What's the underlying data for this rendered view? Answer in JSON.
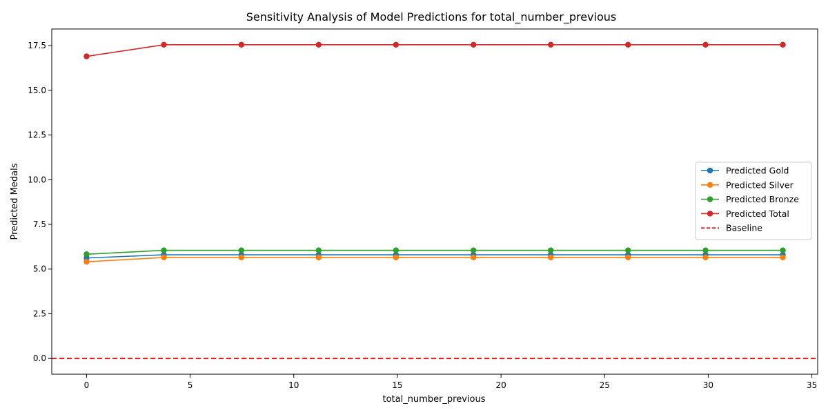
{
  "chart_data": {
    "type": "line",
    "title": "Sensitivity Analysis of Model Predictions for total_number_previous",
    "xlabel": "total_number_previous",
    "ylabel": "Predicted Medals",
    "xlim": [
      -1.68,
      35.28
    ],
    "ylim": [
      -0.88,
      18.43
    ],
    "xticks": [
      0,
      5,
      10,
      15,
      20,
      25,
      30,
      35
    ],
    "yticks": [
      0.0,
      2.5,
      5.0,
      7.5,
      10.0,
      12.5,
      15.0,
      17.5
    ],
    "ytick_labels": [
      "0.0",
      "2.5",
      "5.0",
      "7.5",
      "10.0",
      "12.5",
      "15.0",
      "17.5"
    ],
    "x": [
      0,
      3.73,
      7.47,
      11.2,
      14.93,
      18.67,
      22.4,
      26.13,
      29.87,
      33.6
    ],
    "series": [
      {
        "name": "Predicted Gold",
        "color": "#1f77b4",
        "values": [
          5.62,
          5.8,
          5.8,
          5.8,
          5.8,
          5.8,
          5.8,
          5.8,
          5.8,
          5.8
        ]
      },
      {
        "name": "Predicted Silver",
        "color": "#ff7f0e",
        "values": [
          5.41,
          5.65,
          5.65,
          5.65,
          5.65,
          5.65,
          5.65,
          5.65,
          5.65,
          5.65
        ]
      },
      {
        "name": "Predicted Bronze",
        "color": "#2ca02c",
        "values": [
          5.83,
          6.05,
          6.05,
          6.05,
          6.05,
          6.05,
          6.05,
          6.05,
          6.05,
          6.05
        ]
      },
      {
        "name": "Predicted Total",
        "color": "#d62728",
        "values": [
          16.9,
          17.55,
          17.55,
          17.55,
          17.55,
          17.55,
          17.55,
          17.55,
          17.55,
          17.55
        ]
      }
    ],
    "baseline": {
      "name": "Baseline",
      "value": 0,
      "color": "#ff0000",
      "style": "dashed"
    },
    "legend_position": "center-right",
    "grid": false
  }
}
